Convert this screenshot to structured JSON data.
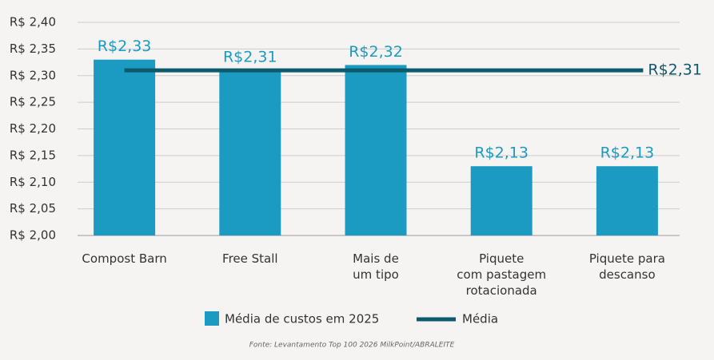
{
  "chart_data": {
    "type": "bar",
    "categories": [
      "Compost Barn",
      "Free Stall",
      "Mais de\num tipo",
      "Piquete\ncom pastagem\nrotacionada",
      "Piquete para\ndescanso"
    ],
    "series": [
      {
        "name": "Média de custos em 2025",
        "color": "#1b9bc2",
        "values": [
          2.33,
          2.31,
          2.32,
          2.13,
          2.13
        ],
        "value_labels": [
          "R$2,33",
          "R$2,31",
          "R$2,32",
          "R$2,13",
          "R$2,13"
        ]
      }
    ],
    "mean_line": {
      "name": "Média",
      "color": "#0e5a6d",
      "value": 2.31,
      "value_label": "R$2,31"
    },
    "ylim": [
      2.0,
      2.4
    ],
    "yticks": [
      {
        "value": 2.0,
        "label": "R$ 2,00"
      },
      {
        "value": 2.05,
        "label": "R$ 2,05"
      },
      {
        "value": 2.1,
        "label": "R$ 2,10"
      },
      {
        "value": 2.15,
        "label": "R$ 2,15"
      },
      {
        "value": 2.2,
        "label": "R$ 2,20"
      },
      {
        "value": 2.25,
        "label": "R$ 2,25"
      },
      {
        "value": 2.3,
        "label": "R$ 2,30"
      },
      {
        "value": 2.35,
        "label": "R$ 2,35"
      },
      {
        "value": 2.4,
        "label": "R$ 2,40"
      }
    ],
    "grid": true,
    "source": "Fonte: Levantamento Top 100 2026 MilkPoint/ABRALEITE"
  }
}
